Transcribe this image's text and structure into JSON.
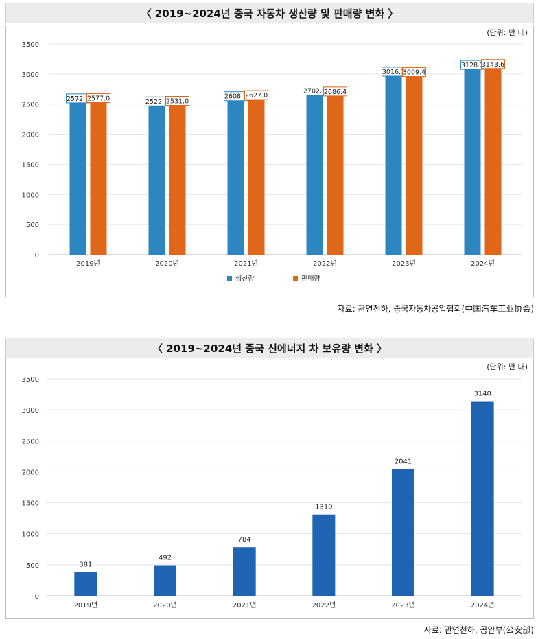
{
  "chart1": {
    "title": "〈 2019~2024년 중국 자동차 생산량 및 판매량 변화 〉",
    "unit": "(단위: 만 대)",
    "source": "자료: 관연천하, 중국자동차공업협회(中国汽车工业协会)",
    "colors": {
      "production": "#2e86c1",
      "sales": "#e0661a"
    }
  },
  "chart2": {
    "title": "〈 2019~2024년 중국 신에너지 차 보유량 변화 〉",
    "unit": "(단위: 만 대)",
    "source": "자료: 관연천하, 공안부(公安部)",
    "colors": {
      "bar": "#1f63b3"
    }
  },
  "chart_data": [
    {
      "type": "bar",
      "title": "〈 2019~2024년 중국 자동차 생산량 및 판매량 변화 〉",
      "categories": [
        "2019년",
        "2020년",
        "2021년",
        "2022년",
        "2023년",
        "2024년"
      ],
      "series": [
        {
          "name": "생산량",
          "values": [
            2572.1,
            2522.5,
            2608.2,
            2702.1,
            3016.1,
            3128.2
          ],
          "labels": [
            "2572.1",
            "2522.5",
            "2608.2",
            "2702.1",
            "3016.1",
            "3128.2"
          ]
        },
        {
          "name": "판매량",
          "values": [
            2577.0,
            2531.0,
            2627.0,
            2686.4,
            3009.4,
            3143.6
          ],
          "labels": [
            "2577.0",
            "2531.0",
            "2627.0",
            "2686.4",
            "3009.4",
            "3143.6"
          ]
        }
      ],
      "ylim": [
        0,
        3500
      ],
      "yticks": [
        "0",
        "500",
        "1000",
        "1500",
        "2000",
        "2500",
        "3000",
        "3500"
      ],
      "legend": "bottom-center",
      "grid": true
    },
    {
      "type": "bar",
      "title": "〈 2019~2024년 중국 신에너지 차 보유량 변화 〉",
      "categories": [
        "2019년",
        "2020년",
        "2021년",
        "2022년",
        "2023년",
        "2024년"
      ],
      "values": [
        381,
        492,
        784,
        1310,
        2041,
        3140
      ],
      "labels": [
        "381",
        "492",
        "784",
        "1310",
        "2041",
        "3140"
      ],
      "ylim": [
        0,
        3500
      ],
      "yticks": [
        "0",
        "500",
        "1000",
        "1500",
        "2000",
        "2500",
        "3000",
        "3500"
      ],
      "grid": true
    }
  ]
}
